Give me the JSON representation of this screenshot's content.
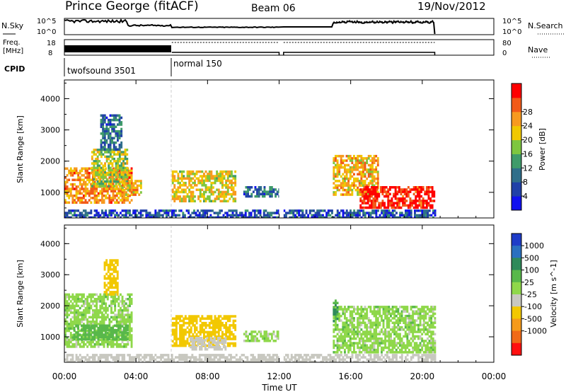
{
  "header": {
    "station": "Prince George (fitACF)",
    "beam": "Beam 06",
    "date": "19/Nov/2012"
  },
  "strips": {
    "nsky_label": "N.Sky",
    "nsky_ticks": [
      "10^5",
      "10^0"
    ],
    "nsearch_label": "N.Search",
    "freq_label_1": "Freq.",
    "freq_label_2": "[MHz]",
    "freq_ticks": [
      "18",
      "8"
    ],
    "nave_label": "Nave",
    "nave_ticks": [
      "80",
      "0"
    ],
    "cpid_label": "CPID",
    "cpid_segments": [
      {
        "name": "twofsound 3501",
        "start": 0,
        "end": 6
      },
      {
        "name": "normal 150",
        "start": 6,
        "end": 20.7
      }
    ]
  },
  "axes": {
    "xlabel": "Time UT",
    "xticks": [
      "00:00",
      "04:00",
      "08:00",
      "12:00",
      "16:00",
      "20:00",
      "00:00"
    ],
    "ylabel": "Slant Range [km]",
    "yticks": [
      "1000",
      "2000",
      "3000",
      "4000"
    ]
  },
  "power_colorbar": {
    "label": "Power [dB]",
    "ticks": [
      "4",
      "8",
      "12",
      "16",
      "20",
      "24",
      "28"
    ],
    "colors": [
      "#1010f0",
      "#2040a8",
      "#2f6e8a",
      "#3f9b6a",
      "#7ec63f",
      "#f0c800",
      "#f79a1f",
      "#f25a18",
      "#ff0000"
    ]
  },
  "velocity_colorbar": {
    "label": "Velocity [m s^-1]",
    "ticks": [
      "1000",
      "500",
      "100",
      "25",
      "-25",
      "-100",
      "-500",
      "-1000"
    ],
    "colors": [
      "#1e3cc8",
      "#2a70c0",
      "#2f8a5a",
      "#58b84a",
      "#8fd84a",
      "#c8c8c0",
      "#f2c800",
      "#f59a1a",
      "#f06a18",
      "#ff1010"
    ]
  },
  "chart_data": {
    "type": "heatmap",
    "title": "Prince George (fitACF)",
    "xlabel": "Time UT",
    "ylabel": "Slant Range [km]",
    "xlim_hours": [
      0,
      24
    ],
    "ylim_km": [
      180,
      4600
    ],
    "panels": [
      {
        "name": "Power",
        "unit": "dB",
        "colorbar_range": [
          0,
          30
        ],
        "patches": [
          {
            "t": [
              0.0,
              3.8
            ],
            "r": [
              700,
              1800
            ],
            "value": 22
          },
          {
            "t": [
              1.5,
              3.5
            ],
            "r": [
              1200,
              2400
            ],
            "value": 16
          },
          {
            "t": [
              2.0,
              3.2
            ],
            "r": [
              2400,
              3500
            ],
            "value": 8
          },
          {
            "t": [
              3.2,
              4.3
            ],
            "r": [
              900,
              1400
            ],
            "value": 20
          },
          {
            "t": [
              6.0,
              9.5
            ],
            "r": [
              700,
              1700
            ],
            "value": 18
          },
          {
            "t": [
              10.0,
              12.0
            ],
            "r": [
              900,
              1200
            ],
            "value": 8
          },
          {
            "t": [
              15.0,
              17.5
            ],
            "r": [
              900,
              2200
            ],
            "value": 20
          },
          {
            "t": [
              16.5,
              20.7
            ],
            "r": [
              500,
              1200
            ],
            "value": 28
          },
          {
            "t": [
              0.0,
              20.7
            ],
            "r": [
              200,
              450
            ],
            "value": 6
          }
        ]
      },
      {
        "name": "Velocity",
        "unit": "m s^-1",
        "colorbar_range": [
          -1000,
          1000
        ],
        "patches": [
          {
            "t": [
              0.0,
              3.8
            ],
            "r": [
              700,
              2400
            ],
            "value": 0
          },
          {
            "t": [
              0.5,
              3.5
            ],
            "r": [
              900,
              1400
            ],
            "value": 60
          },
          {
            "t": [
              2.2,
              3.0
            ],
            "r": [
              2400,
              3500
            ],
            "value": -150
          },
          {
            "t": [
              6.0,
              9.5
            ],
            "r": [
              700,
              1700
            ],
            "value": -150
          },
          {
            "t": [
              7.0,
              9.0
            ],
            "r": [
              600,
              1000
            ],
            "value": -70
          },
          {
            "t": [
              10.0,
              12.0
            ],
            "r": [
              900,
              1200
            ],
            "value": 0
          },
          {
            "t": [
              15.0,
              20.7
            ],
            "r": [
              500,
              2000
            ],
            "value": 0
          },
          {
            "t": [
              15.0,
              15.3
            ],
            "r": [
              1500,
              2200
            ],
            "value": 110
          },
          {
            "t": [
              0.0,
              20.7
            ],
            "r": [
              200,
              450
            ],
            "value": -60
          }
        ]
      }
    ]
  }
}
